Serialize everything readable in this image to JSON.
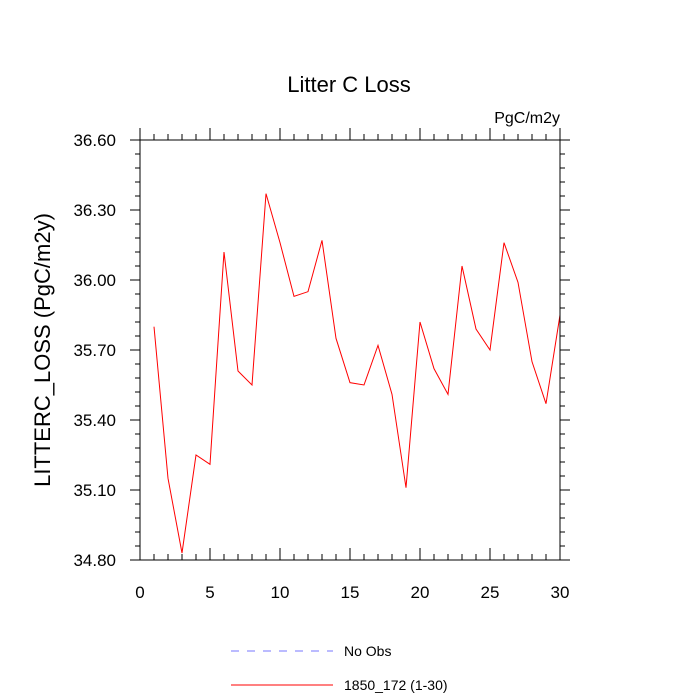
{
  "chart_data": {
    "type": "line",
    "title": "Litter C Loss",
    "units_label": "PgC/m2y",
    "xlabel": "",
    "ylabel": "LITTERC_LOSS  (PgC/m2y)",
    "xlim": [
      0,
      30
    ],
    "ylim": [
      34.8,
      36.6
    ],
    "x_ticks": [
      0,
      5,
      10,
      15,
      20,
      25,
      30
    ],
    "x_tick_labels": [
      "0",
      "5",
      "10",
      "15",
      "20",
      "25",
      "30"
    ],
    "y_ticks": [
      34.8,
      35.1,
      35.4,
      35.7,
      36.0,
      36.3,
      36.6
    ],
    "y_tick_labels": [
      "34.80",
      "35.10",
      "35.40",
      "35.70",
      "36.00",
      "36.30",
      "36.60"
    ],
    "grid": false,
    "legend_position": "bottom-center",
    "series": [
      {
        "name": "No Obs",
        "color": "#7777ff",
        "dash": true,
        "x": [],
        "values": []
      },
      {
        "name": "1850_172 (1-30)",
        "color": "#ff0000",
        "dash": false,
        "x": [
          1,
          2,
          3,
          4,
          5,
          6,
          7,
          8,
          9,
          10,
          11,
          12,
          13,
          14,
          15,
          16,
          17,
          18,
          19,
          20,
          21,
          22,
          23,
          24,
          25,
          26,
          27,
          28,
          29,
          30
        ],
        "values": [
          35.8,
          35.15,
          34.83,
          35.25,
          35.21,
          36.12,
          35.61,
          35.55,
          36.37,
          36.16,
          35.93,
          35.95,
          36.17,
          35.75,
          35.56,
          35.55,
          35.72,
          35.51,
          35.11,
          35.82,
          35.62,
          35.51,
          36.06,
          35.79,
          35.7,
          36.16,
          35.99,
          35.65,
          35.47,
          35.85
        ]
      }
    ]
  }
}
